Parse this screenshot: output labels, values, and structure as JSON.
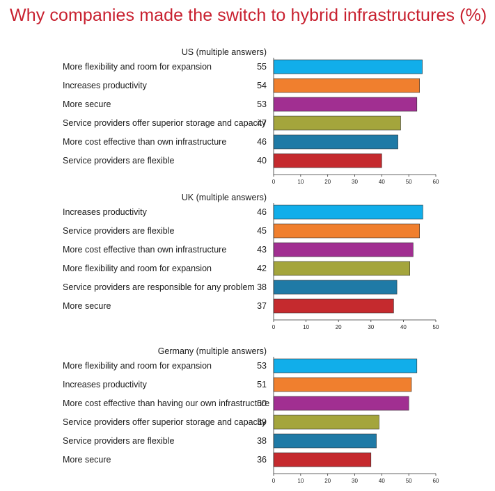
{
  "title": "Why companies made the switch to hybrid infrastructures (%)",
  "colors": [
    "#11aeea",
    "#f07f2e",
    "#a12f91",
    "#a4a53c",
    "#1f7aa6",
    "#c52a2e"
  ],
  "chart_data": [
    {
      "type": "bar",
      "orientation": "horizontal",
      "title": "US (multiple answers)",
      "categories": [
        "More flexibility and room for expansion",
        "Increases productivity",
        "More secure",
        "Service providers offer superior storage and capacity",
        "More cost effective than own infrastructure",
        "Service providers are flexible"
      ],
      "values": [
        55,
        54,
        53,
        47,
        46,
        40
      ],
      "xlim": [
        0,
        60
      ],
      "ticks": [
        0,
        10,
        20,
        30,
        40,
        50,
        60
      ]
    },
    {
      "type": "bar",
      "orientation": "horizontal",
      "title": "UK (multiple answers)",
      "categories": [
        "Increases productivity",
        "Service providers are flexible",
        "More cost effective than own infrastructure",
        "More flexibility and room for expansion",
        "Service providers are responsible for any problem",
        "More secure"
      ],
      "values": [
        46,
        45,
        43,
        42,
        38,
        37
      ],
      "xlim": [
        0,
        50
      ],
      "ticks": [
        0,
        10,
        20,
        30,
        40,
        50
      ]
    },
    {
      "type": "bar",
      "orientation": "horizontal",
      "title": "Germany (multiple answers)",
      "categories": [
        "More flexibility and room for expansion",
        "Increases productivity",
        "More cost effective than having our own infrastructure",
        "Service providers offer superior storage and capacity",
        "Service providers are flexible",
        "More secure"
      ],
      "values": [
        53,
        51,
        50,
        39,
        38,
        36
      ],
      "xlim": [
        0,
        60
      ],
      "ticks": [
        0,
        10,
        20,
        30,
        40,
        50,
        60
      ]
    }
  ]
}
